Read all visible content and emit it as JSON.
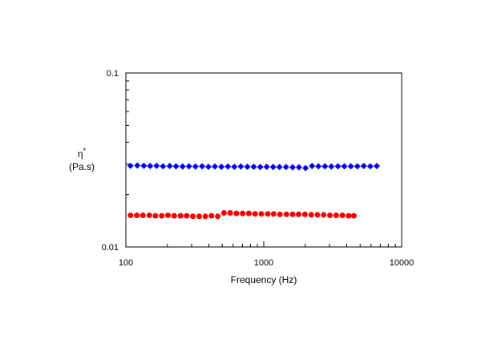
{
  "chart_data": {
    "type": "scatter",
    "title": "",
    "xlabel": "Frequency (Hz)",
    "ylabel": {
      "symbol": "η",
      "superscript": "*",
      "unit": "(Pa.s)"
    },
    "xscale": "log",
    "yscale": "log",
    "xlim": [
      100,
      10000
    ],
    "ylim": [
      0.01,
      0.1
    ],
    "grid": false,
    "legend": "none",
    "x_ticks": [
      {
        "value": 100,
        "label": "100"
      },
      {
        "value": 1000,
        "label": "1000"
      },
      {
        "value": 10000,
        "label": "10000"
      }
    ],
    "y_ticks": [
      {
        "value": 0.01,
        "label": "0.01"
      },
      {
        "value": 0.1,
        "label": "0.1"
      }
    ],
    "series": [
      {
        "marker": "diamond",
        "color": "#0000ff",
        "points": [
          [
            108,
            0.0293
          ],
          [
            121,
            0.0294
          ],
          [
            135,
            0.0293
          ],
          [
            150,
            0.0292
          ],
          [
            167,
            0.0293
          ],
          [
            186,
            0.0291
          ],
          [
            208,
            0.0292
          ],
          [
            231,
            0.0291
          ],
          [
            258,
            0.029
          ],
          [
            287,
            0.0291
          ],
          [
            320,
            0.029
          ],
          [
            357,
            0.0291
          ],
          [
            397,
            0.0289
          ],
          [
            442,
            0.029
          ],
          [
            493,
            0.0289
          ],
          [
            549,
            0.029
          ],
          [
            612,
            0.0289
          ],
          [
            682,
            0.029
          ],
          [
            760,
            0.0289
          ],
          [
            846,
            0.0289
          ],
          [
            943,
            0.0288
          ],
          [
            1050,
            0.0289
          ],
          [
            1170,
            0.0288
          ],
          [
            1300,
            0.0288
          ],
          [
            1450,
            0.0288
          ],
          [
            1620,
            0.0287
          ],
          [
            1800,
            0.0287
          ],
          [
            2010,
            0.0284
          ],
          [
            2240,
            0.0292
          ],
          [
            2490,
            0.0291
          ],
          [
            2780,
            0.0291
          ],
          [
            3090,
            0.029
          ],
          [
            3450,
            0.0291
          ],
          [
            3840,
            0.0291
          ],
          [
            4280,
            0.0291
          ],
          [
            4770,
            0.0291
          ],
          [
            5310,
            0.0292
          ],
          [
            5920,
            0.0291
          ],
          [
            6600,
            0.0292
          ]
        ]
      },
      {
        "marker": "circle",
        "color": "#ff0000",
        "points": [
          [
            108,
            0.0152
          ],
          [
            120,
            0.0152
          ],
          [
            133,
            0.0152
          ],
          [
            148,
            0.0152
          ],
          [
            164,
            0.0151
          ],
          [
            182,
            0.0151
          ],
          [
            202,
            0.0152
          ],
          [
            224,
            0.0151
          ],
          [
            249,
            0.0151
          ],
          [
            276,
            0.0151
          ],
          [
            306,
            0.015
          ],
          [
            340,
            0.015
          ],
          [
            377,
            0.015
          ],
          [
            418,
            0.0151
          ],
          [
            464,
            0.015
          ],
          [
            515,
            0.0157
          ],
          [
            571,
            0.0157
          ],
          [
            634,
            0.0156
          ],
          [
            703,
            0.0156
          ],
          [
            780,
            0.0156
          ],
          [
            866,
            0.0155
          ],
          [
            961,
            0.0155
          ],
          [
            1070,
            0.0155
          ],
          [
            1180,
            0.0155
          ],
          [
            1310,
            0.0154
          ],
          [
            1460,
            0.0154
          ],
          [
            1620,
            0.0154
          ],
          [
            1790,
            0.0154
          ],
          [
            1990,
            0.0154
          ],
          [
            2210,
            0.0153
          ],
          [
            2450,
            0.0153
          ],
          [
            2720,
            0.0153
          ],
          [
            3020,
            0.0152
          ],
          [
            3350,
            0.0152
          ],
          [
            3720,
            0.0152
          ],
          [
            4130,
            0.0151
          ],
          [
            4500,
            0.0151
          ]
        ]
      }
    ]
  }
}
